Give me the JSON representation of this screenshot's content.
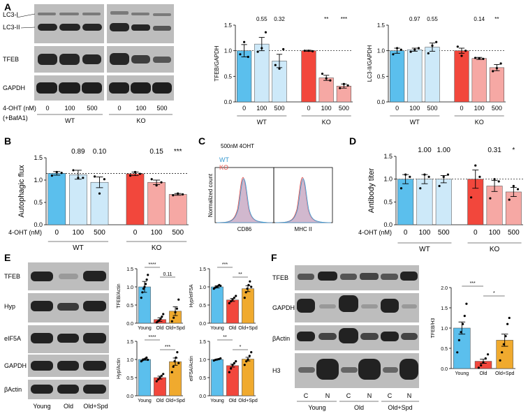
{
  "colors": {
    "wt": "#5bbfed",
    "wt_light": "#cde9f9",
    "ko": "#f2473c",
    "ko_light": "#f6a8a4",
    "yellow": "#f0aa2e",
    "blot_bg": "#b9b9b9",
    "band": "#1e1e1e"
  },
  "panels": {
    "A": "A",
    "B": "B",
    "C": "C",
    "D": "D",
    "E": "E",
    "F": "F"
  },
  "blotA": {
    "rows": [
      "LC3-I",
      "LC3-II",
      "TFEB",
      "GAPDH"
    ],
    "treatment_label": "4-OHT (nM)",
    "bafa1_label": "(+BafA1)",
    "lanes": [
      "0",
      "100",
      "500",
      "0",
      "100",
      "500"
    ],
    "groups": [
      "WT",
      "KO"
    ]
  },
  "blotE": {
    "rows": [
      "TFEB",
      "Hyp",
      "eIF5A",
      "GAPDH",
      "βActin"
    ],
    "lanes": [
      "Young",
      "Old",
      "Old+Spd"
    ]
  },
  "blotF": {
    "rows": [
      "TFEB",
      "GAPDH",
      "βActin",
      "H3"
    ],
    "lanes": [
      "C",
      "N",
      "C",
      "N",
      "C",
      "N"
    ],
    "groups": [
      "Young",
      "Old",
      "Old+Spd"
    ]
  },
  "flow": {
    "title": "500nM 4OHT",
    "legend": [
      "WT",
      "KO"
    ],
    "ylabel": "Normalized count",
    "xlabels": [
      "CD86",
      "MHC II"
    ]
  },
  "chart_data": [
    {
      "id": "A1",
      "type": "bar",
      "ylabel": "TFEB/GAPDH",
      "ylim": [
        0,
        1.5
      ],
      "yticks": [
        0.0,
        0.5,
        1.0,
        1.5
      ],
      "categories": [
        "0",
        "100",
        "500",
        "0",
        "100",
        "500"
      ],
      "values": [
        1.0,
        1.13,
        0.8,
        1.0,
        0.47,
        0.31
      ],
      "errors": [
        0.12,
        0.13,
        0.13,
        0.01,
        0.05,
        0.04
      ],
      "points": [
        [
          0.93,
          1.17,
          0.88
        ],
        [
          0.98,
          1.05,
          1.36
        ],
        [
          0.72,
          0.65,
          1.03
        ],
        [
          1.0,
          1.0,
          0.99
        ],
        [
          0.55,
          0.46,
          0.42
        ],
        [
          0.27,
          0.35,
          0.32
        ]
      ],
      "annotations": [
        "",
        "0.55",
        "0.32",
        "",
        "**",
        "***"
      ],
      "groups": [
        "WT",
        "KO"
      ],
      "reference_line": 1.0
    },
    {
      "id": "A2",
      "type": "bar",
      "ylabel": "LC3-II/GAPDH",
      "ylim": [
        0,
        1.5
      ],
      "yticks": [
        0.0,
        0.5,
        1.0,
        1.5
      ],
      "categories": [
        "0",
        "100",
        "500",
        "0",
        "100",
        "500"
      ],
      "values": [
        1.0,
        1.02,
        1.07,
        1.0,
        0.85,
        0.67
      ],
      "errors": [
        0.05,
        0.03,
        0.08,
        0.05,
        0.02,
        0.06
      ],
      "points": [
        [
          0.93,
          1.05,
          1.02
        ],
        [
          0.98,
          1.02,
          1.05
        ],
        [
          0.95,
          1.1,
          1.17
        ],
        [
          1.08,
          0.9,
          1.0
        ],
        [
          0.86,
          0.85,
          0.84
        ],
        [
          0.6,
          0.66,
          0.75
        ]
      ],
      "annotations": [
        "",
        "0.97",
        "0.55",
        "",
        "0.14",
        "**"
      ],
      "groups": [
        "WT",
        "KO"
      ],
      "reference_line": 1.0
    },
    {
      "id": "B",
      "type": "bar",
      "ylabel": "Autophagic flux",
      "ylim": [
        0,
        1.5
      ],
      "yticks": [
        0.0,
        0.5,
        1.0,
        1.5
      ],
      "categories": [
        "0",
        "100",
        "500",
        "0",
        "100",
        "500"
      ],
      "values": [
        1.15,
        1.12,
        0.95,
        1.14,
        0.95,
        0.68
      ],
      "errors": [
        0.04,
        0.1,
        0.12,
        0.04,
        0.05,
        0.02
      ],
      "points": [
        [
          1.1,
          1.18,
          1.16
        ],
        [
          1.22,
          1.05,
          1.05
        ],
        [
          1.08,
          0.7,
          1.02
        ],
        [
          1.1,
          1.18,
          1.14
        ],
        [
          1.02,
          0.88,
          0.95
        ],
        [
          0.66,
          0.7,
          0.68
        ]
      ],
      "annotations": [
        "",
        "0.89",
        "0.10",
        "",
        "0.15",
        "***"
      ],
      "groups": [
        "WT",
        "KO"
      ],
      "xlabel": "4-OHT (nM)",
      "reference_line": 1.15
    },
    {
      "id": "D",
      "type": "bar",
      "ylabel": "Antibody titer",
      "ylim": [
        0,
        1.5
      ],
      "yticks": [
        0.0,
        0.5,
        1.0,
        1.5
      ],
      "categories": [
        "0",
        "100",
        "500",
        "0",
        "100",
        "500"
      ],
      "values": [
        1.0,
        1.0,
        1.0,
        1.0,
        0.85,
        0.72
      ],
      "errors": [
        0.1,
        0.1,
        0.08,
        0.2,
        0.12,
        0.1
      ],
      "points": [
        [
          0.8,
          1.1,
          1.05
        ],
        [
          0.8,
          1.1,
          1.05
        ],
        [
          0.85,
          1.05,
          1.1
        ],
        [
          0.6,
          1.3,
          1.05
        ],
        [
          0.58,
          1.0,
          0.95
        ],
        [
          0.55,
          0.85,
          0.78
        ]
      ],
      "annotations": [
        "",
        "1.00",
        "1.00",
        "",
        "0.31",
        "*"
      ],
      "groups": [
        "WT",
        "KO"
      ],
      "xlabel": "4-OHT (nM)",
      "reference_line": 1.0
    },
    {
      "id": "E1",
      "type": "bar",
      "ylabel": "TFEB/Actin",
      "ylim": [
        0,
        1.5
      ],
      "yticks": [
        0.0,
        0.5,
        1.0,
        1.5
      ],
      "categories": [
        "Young",
        "Old",
        "Old+Spd"
      ],
      "values": [
        1.0,
        0.1,
        0.33
      ],
      "errors": [
        0.15,
        0.05,
        0.12
      ],
      "points": [
        [
          0.7,
          0.85,
          0.95,
          1.0,
          1.08,
          1.2,
          1.33
        ],
        [
          0.02,
          0.05,
          0.08,
          0.12,
          0.18,
          0.25
        ],
        [
          0.05,
          0.15,
          0.3,
          0.4,
          0.65
        ]
      ],
      "sig": [
        {
          "a": 0,
          "b": 1,
          "label": "****"
        },
        {
          "a": 1,
          "b": 2,
          "label": "0.11"
        }
      ]
    },
    {
      "id": "E2",
      "type": "bar",
      "ylabel": "Hyp/eIF5A",
      "ylim": [
        0,
        1.5
      ],
      "yticks": [
        0.0,
        0.5,
        1.0,
        1.5
      ],
      "categories": [
        "Young",
        "Old",
        "Old+Spd"
      ],
      "values": [
        1.0,
        0.64,
        0.95
      ],
      "errors": [
        0.03,
        0.04,
        0.08
      ],
      "points": [
        [
          0.95,
          0.98,
          1.0,
          1.02,
          1.05,
          1.03
        ],
        [
          0.55,
          0.6,
          0.65,
          0.7,
          0.75
        ],
        [
          0.7,
          0.85,
          0.95,
          1.05,
          1.15,
          1.0
        ]
      ],
      "sig": [
        {
          "a": 0,
          "b": 1,
          "label": "***"
        },
        {
          "a": 1,
          "b": 2,
          "label": "**"
        }
      ]
    },
    {
      "id": "E3",
      "type": "bar",
      "ylabel": "Hyp/Actin",
      "ylim": [
        0,
        1.5
      ],
      "yticks": [
        0.0,
        0.5,
        1.0,
        1.5
      ],
      "categories": [
        "Young",
        "Old",
        "Old+Spd"
      ],
      "values": [
        1.0,
        0.5,
        0.94
      ],
      "errors": [
        0.02,
        0.04,
        0.1
      ],
      "points": [
        [
          0.95,
          0.98,
          1.0,
          1.02,
          1.05,
          0.99
        ],
        [
          0.4,
          0.45,
          0.5,
          0.55,
          0.6
        ],
        [
          0.65,
          0.8,
          0.95,
          1.05,
          1.2,
          0.9
        ]
      ],
      "sig": [
        {
          "a": 0,
          "b": 1,
          "label": "****"
        },
        {
          "a": 1,
          "b": 2,
          "label": "***"
        }
      ]
    },
    {
      "id": "E4",
      "type": "bar",
      "ylabel": "eIF5A/Actin",
      "ylim": [
        0,
        1.5
      ],
      "yticks": [
        0.0,
        0.5,
        1.0,
        1.5
      ],
      "categories": [
        "Young",
        "Old",
        "Old+Spd"
      ],
      "values": [
        1.0,
        0.83,
        1.01
      ],
      "errors": [
        0.01,
        0.04,
        0.05
      ],
      "points": [
        [
          0.97,
          0.99,
          1.0,
          1.01,
          1.03
        ],
        [
          0.65,
          0.75,
          0.85,
          0.9,
          0.95
        ],
        [
          0.85,
          0.95,
          1.0,
          1.1,
          1.2
        ]
      ],
      "sig": [
        {
          "a": 0,
          "b": 1,
          "label": "**"
        },
        {
          "a": 1,
          "b": 2,
          "label": "*"
        }
      ]
    },
    {
      "id": "F",
      "type": "bar",
      "ylabel": "TFEB/H3",
      "ylim": [
        0,
        2.0
      ],
      "yticks": [
        0.0,
        0.5,
        1.0,
        1.5,
        2.0
      ],
      "categories": [
        "Young",
        "Old",
        "Old+Spd"
      ],
      "values": [
        1.0,
        0.18,
        0.7
      ],
      "errors": [
        0.15,
        0.05,
        0.15
      ],
      "points": [
        [
          0.4,
          0.7,
          0.9,
          1.1,
          1.3,
          1.6
        ],
        [
          0.02,
          0.08,
          0.15,
          0.25,
          0.35
        ],
        [
          0.2,
          0.4,
          0.6,
          0.8,
          1.1,
          1.25
        ]
      ],
      "sig": [
        {
          "a": 0,
          "b": 1,
          "label": "***"
        },
        {
          "a": 1,
          "b": 2,
          "label": "*"
        }
      ]
    }
  ]
}
